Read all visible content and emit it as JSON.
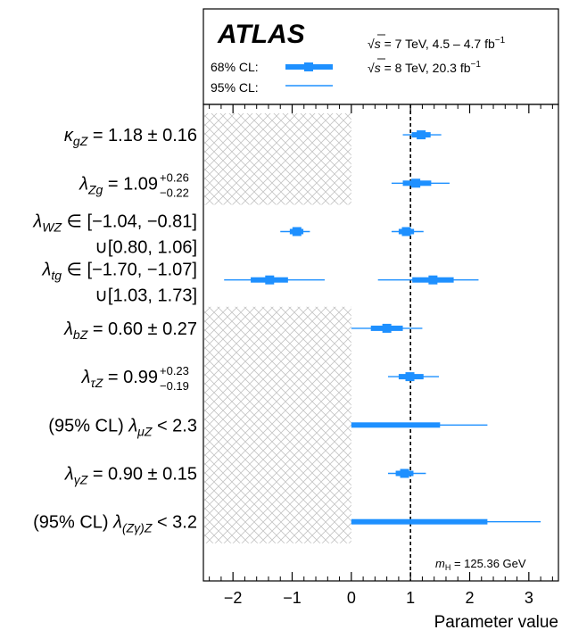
{
  "chart_data": {
    "type": "forest",
    "brand": "ATLAS",
    "energy_labels": [
      {
        "prefix": "√",
        "s": "s",
        "text": " = 7 TeV, 4.5 – 4.7 fb",
        "sup": "−1"
      },
      {
        "prefix": "√",
        "s": "s",
        "text": " = 8 TeV, 20.3 fb",
        "sup": "−1"
      }
    ],
    "legend": [
      {
        "label": "68% CL:",
        "style": "thick"
      },
      {
        "label": "95% CL:",
        "style": "thin"
      }
    ],
    "mass_annotation": {
      "m": "m",
      "sub": "H",
      "text": " = 125.36 GeV"
    },
    "xlabel": "Parameter value",
    "xlim": [
      -2.5,
      3.5
    ],
    "xticks": [
      -2,
      -1,
      0,
      1,
      2,
      3
    ],
    "xtick_labels": [
      "−2",
      "−1",
      "0",
      "1",
      "2",
      "3"
    ],
    "reference_line": 1,
    "hatched_regions": [
      {
        "x0": -2.5,
        "x1": 0,
        "rows": [
          0,
          1
        ]
      },
      {
        "x0": -2.5,
        "x1": 0,
        "rows": [
          4,
          5,
          6,
          7,
          8
        ]
      }
    ],
    "colors": {
      "marker": "#1e90ff",
      "reference": "#000000",
      "hatch": "#bdbdbd"
    },
    "parameters": [
      {
        "label": {
          "sym": "κ",
          "sub": "gZ",
          "text": " = 1.18 ± 0.16"
        },
        "intervals": [
          {
            "central": 1.18,
            "cl68": [
              1.02,
              1.34
            ],
            "cl95": [
              0.87,
              1.52
            ]
          }
        ]
      },
      {
        "label": {
          "sym": "λ",
          "sub": "Zg",
          "text": " = 1.09",
          "up": "+0.26",
          "down": "−0.22"
        },
        "intervals": [
          {
            "central": 1.09,
            "cl68": [
              0.87,
              1.35
            ],
            "cl95": [
              0.68,
              1.66
            ]
          }
        ]
      },
      {
        "label": {
          "sym": "λ",
          "sub": "WZ",
          "text": " ∈ [−1.04, −0.81]",
          "line2": "∪[0.80, 1.06]"
        },
        "intervals": [
          {
            "central": -0.92,
            "cl68": [
              -1.04,
              -0.81
            ],
            "cl95": [
              -1.2,
              -0.7
            ]
          },
          {
            "central": 0.93,
            "cl68": [
              0.8,
              1.06
            ],
            "cl95": [
              0.68,
              1.22
            ]
          }
        ]
      },
      {
        "label": {
          "sym": "λ",
          "sub": "tg",
          "text": " ∈ [−1.70, −1.07]",
          "line2": "∪[1.03, 1.73]"
        },
        "intervals": [
          {
            "central": -1.38,
            "cl68": [
              -1.7,
              -1.07
            ],
            "cl95": [
              -2.15,
              -0.45
            ]
          },
          {
            "central": 1.38,
            "cl68": [
              1.03,
              1.73
            ],
            "cl95": [
              0.45,
              2.15
            ]
          }
        ]
      },
      {
        "label": {
          "sym": "λ",
          "sub": "bZ",
          "text": " = 0.60 ± 0.27"
        },
        "intervals": [
          {
            "central": 0.6,
            "cl68": [
              0.33,
              0.87
            ],
            "cl95": [
              0.0,
              1.2
            ]
          }
        ]
      },
      {
        "label": {
          "sym": "λ",
          "sub": "τZ",
          "text": " = 0.99",
          "up": "+0.23",
          "down": "−0.19"
        },
        "intervals": [
          {
            "central": 0.99,
            "cl68": [
              0.8,
              1.22
            ],
            "cl95": [
              0.62,
              1.48
            ]
          }
        ]
      },
      {
        "label": {
          "pre": "(95% CL)",
          "sym": "λ",
          "sub": "μZ",
          "text": " < 2.3"
        },
        "intervals": [
          {
            "cl68": [
              0.0,
              1.5
            ],
            "cl95": [
              0.0,
              2.3
            ]
          }
        ]
      },
      {
        "label": {
          "sym": "λ",
          "sub": "γZ",
          "text": " = 0.90 ± 0.15"
        },
        "intervals": [
          {
            "central": 0.9,
            "cl68": [
              0.75,
              1.05
            ],
            "cl95": [
              0.62,
              1.26
            ]
          }
        ]
      },
      {
        "label": {
          "pre": "(95% CL)",
          "sym": "λ",
          "sub": "(Zγ)Z",
          "text": " < 3.2"
        },
        "intervals": [
          {
            "cl68": [
              0.0,
              2.3
            ],
            "cl95": [
              0.0,
              3.2
            ]
          }
        ]
      }
    ]
  }
}
